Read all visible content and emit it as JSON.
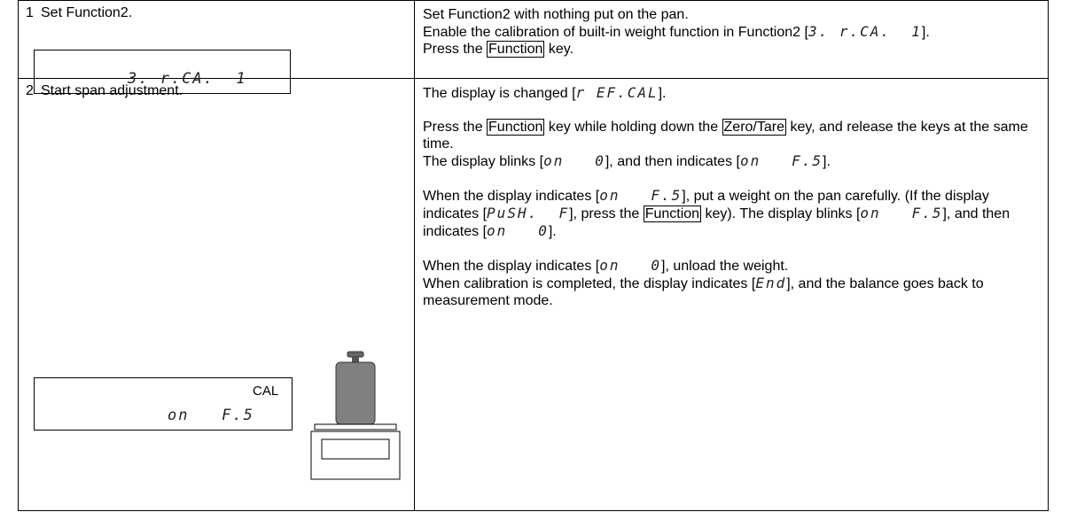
{
  "rows": [
    {
      "step": "1",
      "title": "Set Function2.",
      "display": {
        "lines": [
          "3. r.CA.  1"
        ]
      },
      "groups": [
        [
          [
            {
              "text": "Set Function2 with nothing put on the pan."
            }
          ],
          [
            {
              "text": "Enable the calibration of built-in weight function in Function2 ["
            },
            {
              "code": "3. r.CA.  1"
            },
            {
              "text": "]."
            }
          ],
          [
            {
              "text": "Press the "
            },
            {
              "key": "Function"
            },
            {
              "text": " key."
            }
          ]
        ]
      ]
    },
    {
      "step": "2",
      "title": "Start span adjustment.",
      "display": {
        "indicator": "CAL",
        "lines": [
          "on   F.5"
        ]
      },
      "groups": [
        [
          [
            {
              "text": "The display is changed ["
            },
            {
              "code": "r EF.CAL"
            },
            {
              "text": "]."
            }
          ]
        ],
        [
          [
            {
              "text": "Press the "
            },
            {
              "key": "Function"
            },
            {
              "text": " key while holding down the "
            },
            {
              "key": "Zero/Tare"
            },
            {
              "text": " key, and release the keys at the same time."
            }
          ],
          [
            {
              "text": "The display blinks ["
            },
            {
              "code": "on   0"
            },
            {
              "text": "], and then indicates ["
            },
            {
              "code": "on   F.5"
            },
            {
              "text": "]."
            }
          ]
        ],
        [
          [
            {
              "text": "When the display indicates ["
            },
            {
              "code": "on   F.5"
            },
            {
              "text": "], put a weight on the pan carefully.   (If the display indicates ["
            },
            {
              "code": "PuSH.  F"
            },
            {
              "text": "], press the "
            },
            {
              "key": "Function"
            },
            {
              "text": " key). The display blinks ["
            },
            {
              "code": "on   F.5"
            },
            {
              "text": "], and then indicates ["
            },
            {
              "code": "on   0"
            },
            {
              "text": "]."
            }
          ]
        ],
        [
          [
            {
              "text": "When the display indicates ["
            },
            {
              "code": "on   0"
            },
            {
              "text": "], unload the weight."
            }
          ],
          [
            {
              "text": "When calibration is completed, the display indicates ["
            },
            {
              "code": "End"
            },
            {
              "text": "], and the balance goes back to measurement mode."
            }
          ]
        ]
      ]
    }
  ]
}
